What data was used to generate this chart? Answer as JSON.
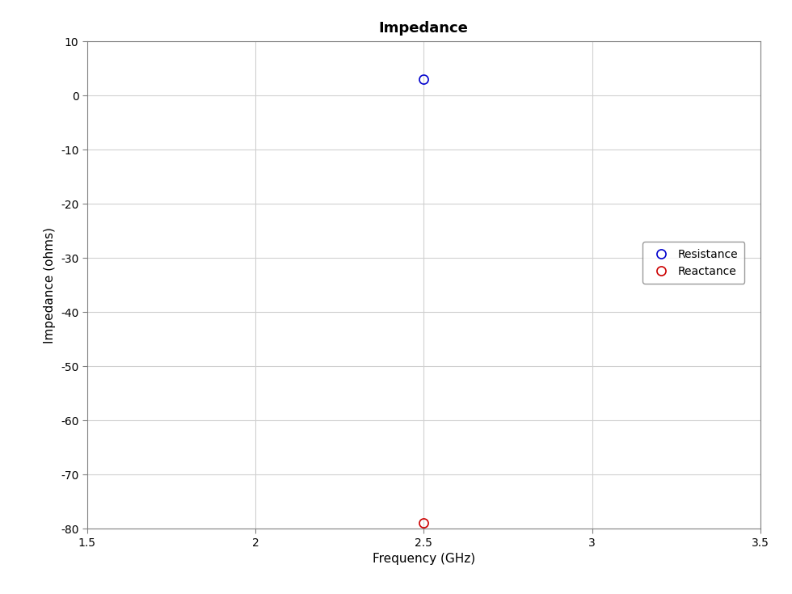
{
  "title": "Impedance",
  "xlabel": "Frequency (GHz)",
  "ylabel": "Impedance (ohms)",
  "resistance_x": [
    2.5
  ],
  "resistance_y": [
    3.0
  ],
  "reactance_x": [
    2.5
  ],
  "reactance_y": [
    -79.0
  ],
  "resistance_color": "#0000cd",
  "reactance_color": "#cc0000",
  "xlim": [
    1.5,
    3.5
  ],
  "ylim": [
    -80,
    10
  ],
  "xticks": [
    1.5,
    2.0,
    2.5,
    3.0,
    3.5
  ],
  "yticks": [
    -80,
    -70,
    -60,
    -50,
    -40,
    -30,
    -20,
    -10,
    0,
    10
  ],
  "marker": "o",
  "marker_size": 8,
  "marker_linewidth": 1.2,
  "legend_labels": [
    "Resistance",
    "Reactance"
  ],
  "background_color": "#ffffff",
  "title_fontsize": 13,
  "label_fontsize": 11,
  "tick_fontsize": 10,
  "legend_fontsize": 10,
  "grid_color": "#d0d0d0",
  "spine_color": "#808080"
}
